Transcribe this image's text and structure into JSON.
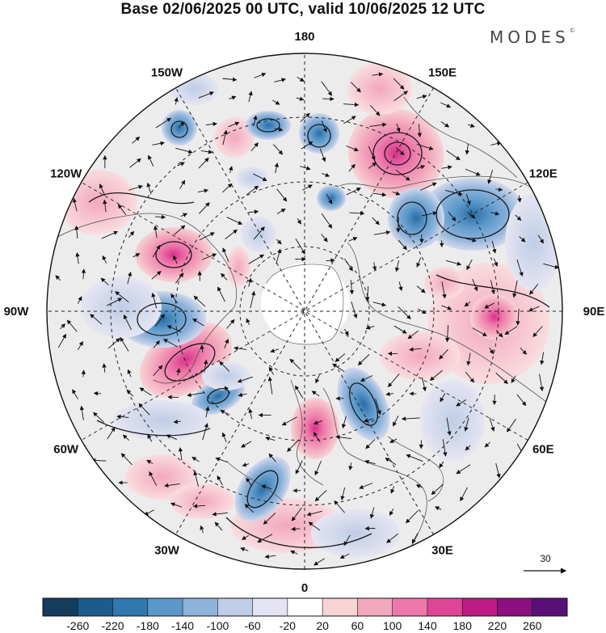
{
  "title": "Base 02/06/2025 00 UTC, valid 10/06/2025 12 UTC",
  "brand": "MODES",
  "brand_mark": "©",
  "map": {
    "projection": "north-polar-stereographic",
    "longitude_labels": [
      {
        "text": "180",
        "lon": 180
      },
      {
        "text": "150E",
        "lon": 150
      },
      {
        "text": "120E",
        "lon": 120
      },
      {
        "text": "90E",
        "lon": 90
      },
      {
        "text": "60E",
        "lon": 60
      },
      {
        "text": "30E",
        "lon": 30
      },
      {
        "text": "0",
        "lon": 0
      },
      {
        "text": "30W",
        "lon": -30
      },
      {
        "text": "60W",
        "lon": -60
      },
      {
        "text": "90W",
        "lon": -90
      },
      {
        "text": "120W",
        "lon": -120
      },
      {
        "text": "150W",
        "lon": -150
      }
    ],
    "anomaly_colors": {
      "positive": "#e0398f",
      "negative": "#2f6fae",
      "neutral": "#ececec"
    }
  },
  "reference_vector": {
    "label": "30"
  },
  "colorbar": {
    "ticks": [
      "-260",
      "-220",
      "-180",
      "-140",
      "-100",
      "-60",
      "-20",
      "20",
      "60",
      "100",
      "140",
      "180",
      "220",
      "260"
    ],
    "colors": [
      "#143c5d",
      "#1d5b8c",
      "#2f78b0",
      "#5b98c9",
      "#8eb3da",
      "#bfcde6",
      "#e4e3f1",
      "#ffffff",
      "#f7d3d6",
      "#f3a7bd",
      "#ee78aa",
      "#df4595",
      "#bd1b86",
      "#8b0f7e",
      "#5a0f78"
    ]
  }
}
